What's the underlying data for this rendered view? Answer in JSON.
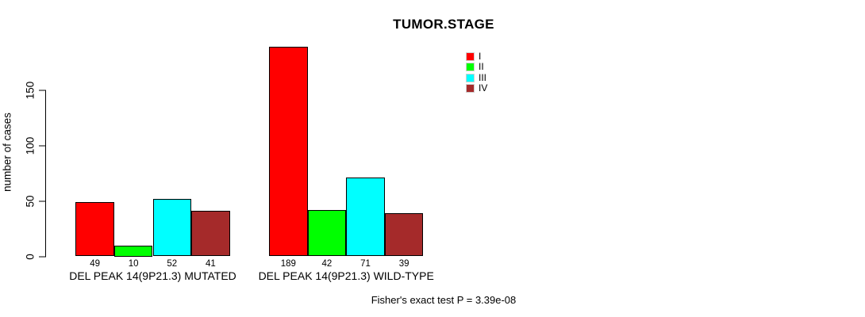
{
  "title": "TUMOR.STAGE",
  "y_axis": {
    "label": "number of cases"
  },
  "footer": "Fisher's exact test P = 3.39e-08",
  "legend": {
    "position": "top-right",
    "entries": [
      {
        "label": "I",
        "color": "#FF0000"
      },
      {
        "label": "II",
        "color": "#00FF00"
      },
      {
        "label": "III",
        "color": "#00FFFF"
      },
      {
        "label": "IV",
        "color": "#A52A2A"
      }
    ]
  },
  "chart_data": {
    "type": "bar",
    "title": "TUMOR.STAGE",
    "xlabel": "",
    "ylabel": "number of cases",
    "ylim": [
      0,
      150
    ],
    "yticks": [
      0,
      50,
      100,
      150
    ],
    "grid": false,
    "legend_position": "top-right",
    "series_labels": [
      "I",
      "II",
      "III",
      "IV"
    ],
    "colors": [
      "#FF0000",
      "#00FF00",
      "#00FFFF",
      "#A52A2A"
    ],
    "groups": [
      {
        "label": "DEL PEAK 14(9P21.3) MUTATED",
        "values": [
          49,
          10,
          52,
          41
        ]
      },
      {
        "label": "DEL PEAK 14(9P21.3) WILD-TYPE",
        "values": [
          189,
          42,
          71,
          39
        ]
      }
    ],
    "bar_value_labels": true,
    "annotation": "Fisher's exact test P = 3.39e-08"
  }
}
